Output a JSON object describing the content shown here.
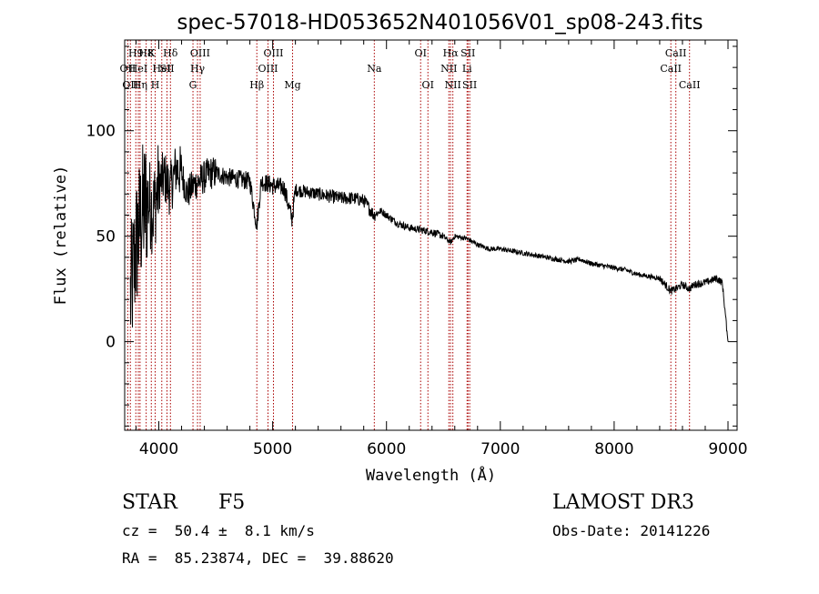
{
  "chart_data": {
    "type": "line",
    "title": "spec-57018-HD053652N401056V01_sp08-243.fits",
    "xlabel": "Wavelength (Å)",
    "ylabel": "Flux (relative)",
    "xlim": [
      3700,
      9080
    ],
    "ylim": [
      -42,
      143
    ],
    "x_ticks": [
      4000,
      5000,
      6000,
      7000,
      8000,
      9000
    ],
    "x_tick_labels": [
      "4000",
      "5000",
      "6000",
      "7000",
      "8000",
      "9000"
    ],
    "y_ticks": [
      0,
      50,
      100
    ],
    "y_tick_labels": [
      "0",
      "50",
      "100"
    ],
    "grid": false,
    "series": [
      {
        "name": "flux",
        "x": [
          3750,
          3800,
          3850,
          3900,
          3950,
          4000,
          4050,
          4100,
          4150,
          4200,
          4250,
          4300,
          4350,
          4400,
          4450,
          4500,
          4600,
          4700,
          4800,
          4860,
          4900,
          5000,
          5100,
          5170,
          5200,
          5300,
          5400,
          5500,
          5600,
          5700,
          5800,
          5890,
          5950,
          6000,
          6100,
          6200,
          6300,
          6400,
          6500,
          6563,
          6600,
          6700,
          6800,
          6900,
          7000,
          7100,
          7200,
          7300,
          7400,
          7500,
          7600,
          7700,
          7800,
          7900,
          8000,
          8100,
          8200,
          8300,
          8400,
          8498,
          8542,
          8600,
          8662,
          8700,
          8800,
          8850,
          8900,
          8950,
          9000
        ],
        "y": [
          20,
          45,
          60,
          68,
          62,
          75,
          78,
          72,
          82,
          80,
          70,
          74,
          76,
          78,
          80,
          80,
          78,
          77,
          76,
          55,
          76,
          74,
          73,
          58,
          72,
          71,
          70,
          69,
          68,
          68,
          67,
          60,
          62,
          60,
          56,
          54,
          53,
          52,
          50,
          47,
          50,
          49,
          46,
          44,
          44,
          43,
          42,
          41,
          40,
          39,
          38,
          39,
          37,
          36,
          35,
          34,
          32,
          31,
          30,
          24,
          25,
          27,
          25,
          27,
          28,
          29,
          30,
          28,
          0
        ]
      }
    ],
    "line_annotations": [
      {
        "wavelength": 3727,
        "label": "OII",
        "row": 2
      },
      {
        "wavelength": 3750,
        "label": "OII",
        "row": 3
      },
      {
        "wavelength": 3798,
        "label": "H9",
        "row": 1
      },
      {
        "wavelength": 3820,
        "label": "HeI",
        "row": 2
      },
      {
        "wavelength": 3835,
        "label": "Hη",
        "row": 3
      },
      {
        "wavelength": 3889,
        "label": "H8",
        "row": 1
      },
      {
        "wavelength": 3934,
        "label": "K",
        "row": 1
      },
      {
        "wavelength": 3968,
        "label": "H",
        "row": 3
      },
      {
        "wavelength": 4026,
        "label": "HeI",
        "row": 2
      },
      {
        "wavelength": 4102,
        "label": "Hδ",
        "row": 1
      },
      {
        "wavelength": 4072,
        "label": "SII",
        "row": 2
      },
      {
        "wavelength": 4300,
        "label": "G",
        "row": 3
      },
      {
        "wavelength": 4340,
        "label": "Hγ",
        "row": 2
      },
      {
        "wavelength": 4363,
        "label": "OIII",
        "row": 1
      },
      {
        "wavelength": 4861,
        "label": "Hβ",
        "row": 3
      },
      {
        "wavelength": 4959,
        "label": "OIII",
        "row": 2
      },
      {
        "wavelength": 5007,
        "label": "OIII",
        "row": 1
      },
      {
        "wavelength": 5175,
        "label": "Mg",
        "row": 3
      },
      {
        "wavelength": 5893,
        "label": "Na",
        "row": 2
      },
      {
        "wavelength": 6300,
        "label": "OI",
        "row": 1
      },
      {
        "wavelength": 6364,
        "label": "OI",
        "row": 3
      },
      {
        "wavelength": 6548,
        "label": "NII",
        "row": 2
      },
      {
        "wavelength": 6563,
        "label": "Hα",
        "row": 1
      },
      {
        "wavelength": 6583,
        "label": "NII",
        "row": 3
      },
      {
        "wavelength": 6708,
        "label": "Li",
        "row": 2
      },
      {
        "wavelength": 6716,
        "label": "SII",
        "row": 1
      },
      {
        "wavelength": 6731,
        "label": "SII",
        "row": 3
      },
      {
        "wavelength": 8498,
        "label": "CaII",
        "row": 2
      },
      {
        "wavelength": 8542,
        "label": "CaII",
        "row": 1
      },
      {
        "wavelength": 8662,
        "label": "CaII",
        "row": 3
      }
    ]
  },
  "info": {
    "class_label": "STAR",
    "subclass": "F5",
    "redshift_text": "cz =  50.4 ±  8.1 km/s",
    "coords_text": "RA =  85.23874, DEC =  39.88620",
    "survey": "LAMOST DR3",
    "obs_date_text": "Obs-Date: 20141226"
  },
  "colors": {
    "spectrum": "#000000",
    "line_markers": "#aa0000",
    "axes": "#000000",
    "background": "#ffffff"
  }
}
